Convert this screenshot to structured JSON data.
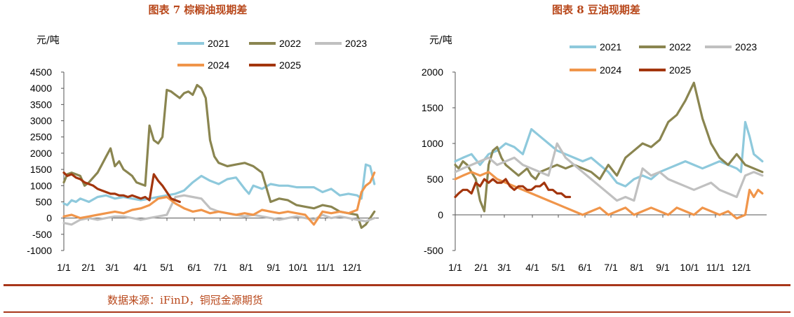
{
  "colors": {
    "accent": "#b8471a",
    "rule": "#a8361a",
    "s2021": "#8ec9dc",
    "s2022": "#8a8550",
    "s2023": "#c0c0c0",
    "s2024": "#f0954a",
    "s2025": "#a3350d",
    "axis": "#555555"
  },
  "source_note": "数据来源：iFinD，铜冠金源期货",
  "chart_data": [
    {
      "type": "line",
      "title": "图表 7  棕榈油现期差",
      "ylabel": "元/吨",
      "xlabel": "",
      "ylim": [
        -1000,
        4500
      ],
      "yticks": [
        "4500",
        "4000",
        "3500",
        "3000",
        "2500",
        "2000",
        "1500",
        "1000",
        "500",
        "0",
        "-500",
        "-1000"
      ],
      "xticks": [
        "1/1",
        "2/1",
        "3/1",
        "4/1",
        "5/1",
        "6/1",
        "7/1",
        "8/1",
        "9/1",
        "10/1",
        "11/1",
        "12/1"
      ],
      "legend": [
        "2021",
        "2022",
        "2023",
        "2024",
        "2025"
      ],
      "series": [
        {
          "name": "2021",
          "color": "#8ec9dc",
          "x": [
            1,
            5,
            10,
            15,
            20,
            25,
            30,
            40,
            50,
            60,
            70,
            80,
            90,
            100,
            110,
            120,
            130,
            140,
            150,
            160,
            170,
            180,
            190,
            200,
            210,
            215,
            220,
            230,
            240,
            250,
            260,
            270,
            280,
            290,
            300,
            310,
            320,
            330,
            340,
            345,
            350,
            355,
            360
          ],
          "y": [
            450,
            400,
            550,
            500,
            600,
            550,
            500,
            650,
            700,
            600,
            650,
            600,
            550,
            600,
            650,
            700,
            750,
            850,
            1100,
            1300,
            1150,
            1050,
            1200,
            1250,
            900,
            750,
            1000,
            900,
            1050,
            1000,
            1000,
            950,
            950,
            950,
            800,
            900,
            700,
            750,
            700,
            600,
            1650,
            1600,
            1050
          ]
        },
        {
          "name": "2022",
          "color": "#8a8550",
          "x": [
            1,
            5,
            10,
            15,
            20,
            25,
            30,
            40,
            45,
            50,
            55,
            60,
            65,
            70,
            75,
            80,
            85,
            90,
            95,
            100,
            105,
            110,
            115,
            120,
            125,
            130,
            135,
            140,
            145,
            150,
            155,
            160,
            165,
            170,
            175,
            180,
            190,
            200,
            210,
            220,
            230,
            240,
            250,
            260,
            270,
            280,
            290,
            300,
            310,
            320,
            330,
            340,
            345,
            350,
            355,
            360
          ],
          "y": [
            1100,
            1350,
            1400,
            1350,
            1300,
            1000,
            1100,
            1400,
            1650,
            1900,
            2150,
            1600,
            1750,
            1500,
            1400,
            1300,
            1100,
            1050,
            1000,
            2850,
            2400,
            2300,
            2500,
            3950,
            3900,
            3800,
            3700,
            3850,
            3900,
            3800,
            4100,
            4000,
            3700,
            2400,
            1900,
            1700,
            1600,
            1650,
            1700,
            1600,
            1400,
            500,
            600,
            550,
            400,
            350,
            300,
            400,
            350,
            200,
            150,
            100,
            -300,
            -200,
            0,
            200
          ]
        },
        {
          "name": "2023",
          "color": "#c0c0c0",
          "x": [
            1,
            10,
            20,
            30,
            40,
            50,
            60,
            70,
            80,
            90,
            100,
            110,
            120,
            130,
            140,
            150,
            160,
            170,
            180,
            190,
            200,
            210,
            220,
            230,
            240,
            250,
            260,
            270,
            280,
            290,
            300,
            310,
            320,
            330,
            340,
            350,
            360
          ],
          "y": [
            -150,
            -200,
            -50,
            0,
            -50,
            0,
            50,
            50,
            0,
            -50,
            0,
            50,
            100,
            650,
            700,
            650,
            600,
            300,
            200,
            150,
            100,
            50,
            100,
            50,
            0,
            -50,
            0,
            50,
            0,
            -50,
            100,
            0,
            50,
            0,
            -50,
            -100,
            0
          ]
        },
        {
          "name": "2024",
          "color": "#f0954a",
          "x": [
            1,
            10,
            20,
            30,
            40,
            50,
            60,
            70,
            80,
            90,
            100,
            110,
            120,
            130,
            140,
            150,
            160,
            170,
            180,
            190,
            200,
            210,
            220,
            230,
            240,
            250,
            260,
            270,
            280,
            290,
            300,
            310,
            320,
            330,
            340,
            345,
            350,
            355,
            360
          ],
          "y": [
            50,
            100,
            0,
            50,
            100,
            150,
            200,
            150,
            250,
            300,
            400,
            600,
            650,
            450,
            300,
            200,
            250,
            150,
            200,
            150,
            100,
            150,
            100,
            250,
            200,
            150,
            200,
            150,
            100,
            -200,
            200,
            150,
            200,
            150,
            250,
            800,
            1000,
            1100,
            1400
          ]
        },
        {
          "name": "2025",
          "color": "#a3350d",
          "x": [
            1,
            5,
            10,
            15,
            20,
            25,
            30,
            35,
            40,
            45,
            50,
            55,
            60,
            65,
            70,
            75,
            80,
            85,
            90,
            95,
            100,
            105,
            110,
            115,
            120,
            125,
            130,
            135
          ],
          "y": [
            1400,
            1300,
            1350,
            1250,
            1200,
            1100,
            1050,
            1000,
            900,
            850,
            800,
            750,
            750,
            700,
            700,
            650,
            700,
            650,
            600,
            650,
            550,
            1350,
            1150,
            1000,
            800,
            600,
            550,
            500
          ]
        }
      ]
    },
    {
      "type": "line",
      "title": "图表 8  豆油现期差",
      "ylabel": "元/吨",
      "xlabel": "",
      "ylim": [
        -500,
        2000
      ],
      "yticks": [
        "2000",
        "1500",
        "1000",
        "500",
        "0",
        "-500"
      ],
      "xticks": [
        "1/1",
        "2/1",
        "3/1",
        "4/1",
        "5/1",
        "6/1",
        "7/1",
        "8/1",
        "9/1",
        "10/1",
        "11/1",
        "12/1"
      ],
      "legend": [
        "2021",
        "2022",
        "2023",
        "2024",
        "2025"
      ],
      "series": [
        {
          "name": "2021",
          "color": "#8ec9dc",
          "x": [
            1,
            10,
            20,
            30,
            40,
            50,
            60,
            70,
            80,
            90,
            100,
            110,
            120,
            130,
            140,
            150,
            160,
            170,
            180,
            190,
            200,
            210,
            220,
            230,
            240,
            250,
            260,
            270,
            280,
            290,
            300,
            310,
            320,
            330,
            335,
            340,
            345,
            350,
            355,
            360
          ],
          "y": [
            750,
            800,
            850,
            700,
            850,
            900,
            1000,
            950,
            850,
            1200,
            1100,
            1000,
            900,
            850,
            800,
            750,
            800,
            700,
            600,
            450,
            400,
            500,
            550,
            500,
            600,
            650,
            700,
            750,
            700,
            650,
            700,
            750,
            700,
            650,
            600,
            1300,
            1100,
            850,
            800,
            750
          ]
        },
        {
          "name": "2022",
          "color": "#8a8550",
          "x": [
            1,
            5,
            10,
            15,
            20,
            25,
            30,
            35,
            40,
            45,
            50,
            55,
            60,
            65,
            70,
            75,
            80,
            85,
            90,
            95,
            100,
            110,
            120,
            130,
            140,
            150,
            160,
            170,
            180,
            190,
            200,
            210,
            220,
            230,
            240,
            250,
            260,
            270,
            280,
            290,
            300,
            310,
            320,
            330,
            340,
            350,
            360
          ],
          "y": [
            700,
            650,
            750,
            700,
            600,
            500,
            200,
            50,
            700,
            900,
            950,
            800,
            700,
            650,
            600,
            550,
            600,
            650,
            550,
            500,
            600,
            650,
            700,
            650,
            700,
            650,
            600,
            500,
            700,
            550,
            800,
            900,
            1000,
            950,
            1050,
            1300,
            1400,
            1600,
            1850,
            1350,
            1000,
            800,
            700,
            850,
            700,
            650,
            600
          ]
        },
        {
          "name": "2023",
          "color": "#c0c0c0",
          "x": [
            1,
            10,
            20,
            30,
            40,
            50,
            60,
            70,
            80,
            90,
            100,
            110,
            120,
            130,
            140,
            150,
            160,
            170,
            180,
            190,
            200,
            210,
            220,
            230,
            240,
            250,
            260,
            270,
            280,
            290,
            300,
            310,
            320,
            330,
            340,
            350,
            360
          ],
          "y": [
            600,
            650,
            700,
            750,
            800,
            700,
            750,
            800,
            700,
            650,
            600,
            550,
            1000,
            800,
            700,
            600,
            500,
            400,
            300,
            200,
            250,
            200,
            650,
            550,
            600,
            500,
            450,
            400,
            350,
            400,
            450,
            350,
            300,
            250,
            550,
            600,
            550
          ]
        },
        {
          "name": "2024",
          "color": "#f0954a",
          "x": [
            1,
            10,
            20,
            30,
            40,
            50,
            60,
            70,
            80,
            90,
            100,
            110,
            120,
            130,
            140,
            150,
            160,
            170,
            180,
            190,
            200,
            210,
            220,
            230,
            240,
            250,
            260,
            270,
            280,
            290,
            300,
            310,
            320,
            330,
            340,
            345,
            350,
            355,
            360
          ],
          "y": [
            500,
            550,
            600,
            550,
            600,
            500,
            450,
            400,
            350,
            300,
            250,
            200,
            150,
            100,
            50,
            0,
            50,
            100,
            0,
            50,
            100,
            0,
            50,
            100,
            50,
            0,
            100,
            50,
            0,
            100,
            50,
            0,
            50,
            -50,
            0,
            350,
            250,
            350,
            300
          ]
        },
        {
          "name": "2025",
          "color": "#a3350d",
          "x": [
            1,
            5,
            10,
            15,
            20,
            25,
            30,
            35,
            40,
            45,
            50,
            55,
            60,
            65,
            70,
            75,
            80,
            85,
            90,
            95,
            100,
            105,
            110,
            115,
            120,
            125,
            130,
            135
          ],
          "y": [
            250,
            300,
            350,
            350,
            300,
            450,
            400,
            500,
            450,
            500,
            450,
            450,
            500,
            400,
            350,
            400,
            400,
            350,
            350,
            400,
            400,
            450,
            350,
            350,
            300,
            300,
            250,
            250
          ]
        }
      ]
    }
  ]
}
